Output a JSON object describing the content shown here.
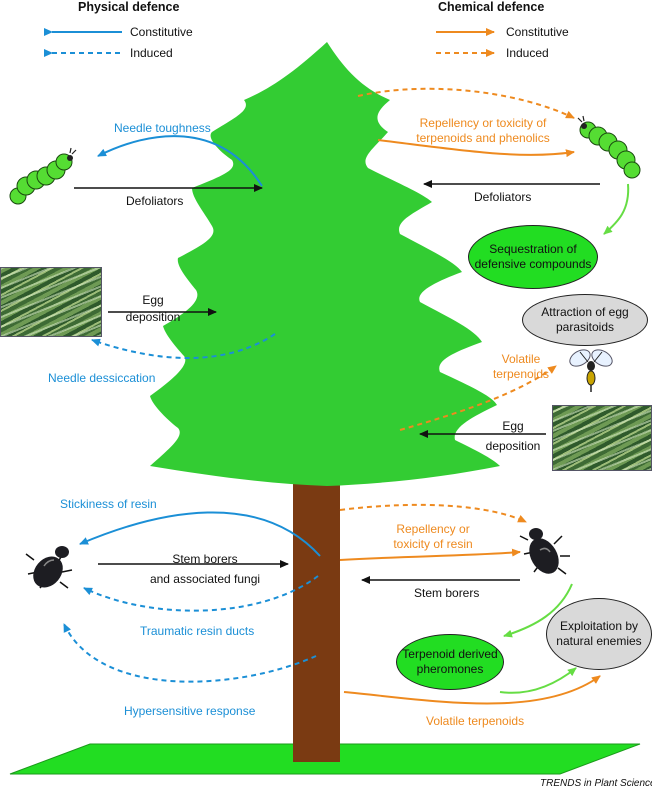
{
  "headers": {
    "physical": "Physical defence",
    "chemical": "Chemical defence"
  },
  "legend": {
    "constitutive": "Constitutive",
    "induced": "Induced"
  },
  "colors": {
    "physical": "#1b8fd6",
    "chemical": "#ee8a1f",
    "tree_foliage": "#33cc33",
    "trunk": "#7a3a12",
    "ground": "#22dd22",
    "insect_arrow": "#66dd44"
  },
  "physical_labels": {
    "needle_toughness": "Needle toughness",
    "needle_dessiccation": "Needle dessiccation",
    "stickiness_of_resin": "Stickiness of resin",
    "traumatic_resin_ducts": "Traumatic resin ducts",
    "hypersensitive_response": "Hypersensitive response"
  },
  "chemical_labels": {
    "repellency_terpenoids_l1": "Repellency or toxicity of",
    "repellency_terpenoids_l2": "terpenoids and phenolics",
    "volatile_terpenoids_upper_l1": "Volatile",
    "volatile_terpenoids_upper_l2": "terpenoids",
    "repellency_resin_l1": "Repellency or",
    "repellency_resin_l2": "toxicity of resin",
    "volatile_terpenoids_lower": "Volatile terpenoids"
  },
  "herbivore_labels": {
    "defoliators_left": "Defoliators",
    "defoliators_right": "Defoliators",
    "egg_left_l1": "Egg",
    "egg_left_l2": "deposition",
    "egg_right_l1": "Egg",
    "egg_right_l2": "deposition",
    "stem_borers_left_l1": "Stem borers",
    "stem_borers_left_l2": "and associated fungi",
    "stem_borers_right": "Stem borers"
  },
  "ellipses": {
    "sequestration_l1": "Sequestration of",
    "sequestration_l2": "defensive compounds",
    "attraction_l1": "Attraction of egg",
    "attraction_l2": "parasitoids",
    "pheromones_l1": "Terpenoid derived",
    "pheromones_l2": "pheromones",
    "exploitation_l1": "Exploitation by",
    "exploitation_l2": "natural enemies"
  },
  "icons": {
    "caterpillar": "caterpillar-icon",
    "beetle": "beetle-icon",
    "wasp": "parasitoid-wasp-icon",
    "needles": "pine-needles-photo"
  },
  "footer": "TRENDS in Plant Science"
}
